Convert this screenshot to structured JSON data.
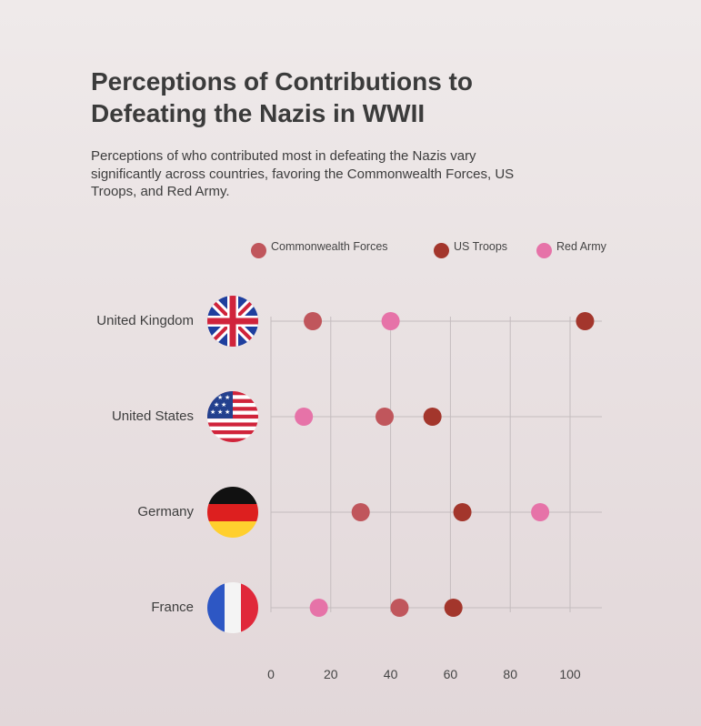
{
  "title": "Perceptions of Contributions to Defeating the Nazis in WWII",
  "subtitle": "Perceptions of who contributed most in defeating the Nazis vary significantly across countries, favoring the Commonwealth Forces, US Troops, and Red Army.",
  "legend": [
    {
      "label": "Commonwealth Forces",
      "color": "#c0565c"
    },
    {
      "label": "US Troops",
      "color": "#a3362c"
    },
    {
      "label": "Red Army",
      "color": "#e673a8"
    }
  ],
  "chart_data": {
    "type": "scatter",
    "categories": [
      "United Kingdom",
      "United States",
      "Germany",
      "France"
    ],
    "flag_icons": [
      "uk-flag-icon",
      "us-flag-icon",
      "germany-flag-icon",
      "france-flag-icon"
    ],
    "series": [
      {
        "name": "Commonwealth Forces",
        "color": "#c0565c",
        "values": [
          14,
          38,
          30,
          43
        ]
      },
      {
        "name": "US Troops",
        "color": "#a3362c",
        "values": [
          105,
          54,
          64,
          61
        ]
      },
      {
        "name": "Red Army",
        "color": "#e673a8",
        "values": [
          40,
          11,
          90,
          16
        ]
      }
    ],
    "x_ticks": [
      0,
      20,
      40,
      60,
      80,
      100
    ],
    "xlim": [
      0,
      110
    ],
    "grid": true,
    "legend_position": "top"
  }
}
